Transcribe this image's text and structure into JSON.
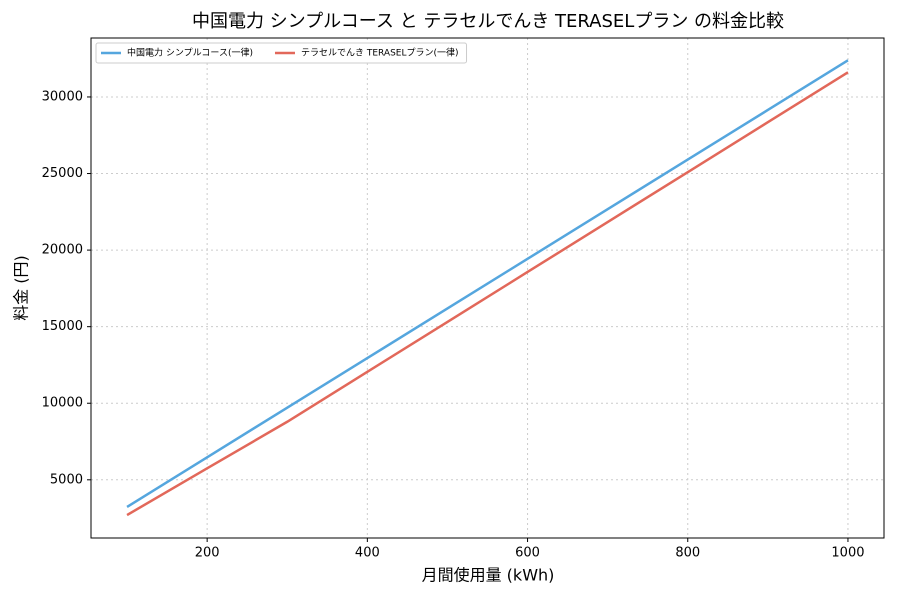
{
  "chart_data": {
    "type": "line",
    "title": "中国電力 シンプルコース と テラセルでんき TERASELプラン の料金比較",
    "x_label": "月間使用量 (kWh)",
    "y_label": "料金 (円)",
    "x": [
      100,
      200,
      300,
      400,
      500,
      600,
      700,
      800,
      900,
      1000
    ],
    "series": [
      {
        "name": "中国電力 シンプルコース(一律)",
        "color": "#55a6de",
        "values": [
          3230,
          6470,
          9710,
          12950,
          16190,
          19430,
          22670,
          25910,
          29150,
          32390
        ]
      },
      {
        "name": "テラセルでんき TERASELプラン(一律)",
        "color": "#e2685a",
        "values": [
          2700,
          5750,
          8790,
          12050,
          15310,
          18570,
          21830,
          25090,
          28350,
          31610
        ]
      }
    ],
    "xlim": [
      55,
      1045
    ],
    "ylim": [
      1200,
      33850
    ],
    "xticks": [
      200,
      400,
      600,
      800,
      1000
    ],
    "yticks": [
      5000,
      10000,
      15000,
      20000,
      25000,
      30000
    ],
    "grid": true,
    "legend": "upper-left"
  }
}
